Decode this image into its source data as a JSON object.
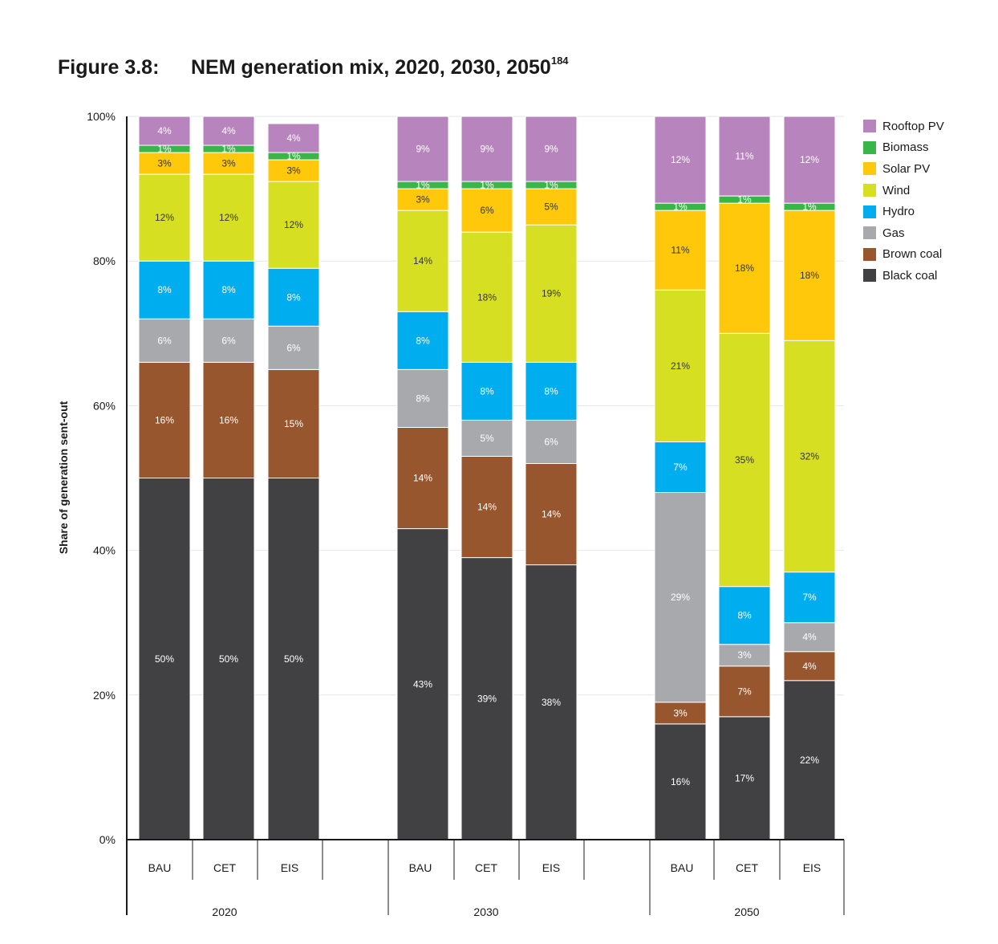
{
  "figure": {
    "label": "Figure 3.8:",
    "title": "NEM generation mix, 2020, 2030, 2050",
    "footnote": "184"
  },
  "chart_data": {
    "type": "stacked-bar",
    "ylabel": "Share of generation sent-out",
    "yticks": [
      "0%",
      "20%",
      "40%",
      "60%",
      "80%",
      "100%"
    ],
    "ylim": [
      0,
      100
    ],
    "groups": [
      {
        "year": "2020",
        "scenarios": [
          "BAU",
          "CET",
          "EIS"
        ]
      },
      {
        "year": "2030",
        "scenarios": [
          "BAU",
          "CET",
          "EIS"
        ]
      },
      {
        "year": "2050",
        "scenarios": [
          "BAU",
          "CET",
          "EIS"
        ]
      }
    ],
    "categories": [
      "2020 BAU",
      "2020 CET",
      "2020 EIS",
      "2030 BAU",
      "2030 CET",
      "2030 EIS",
      "2050 BAU",
      "2050 CET",
      "2050 EIS"
    ],
    "series": [
      {
        "name": "Black coal",
        "color": "#414042",
        "values": [
          50,
          50,
          50,
          43,
          39,
          38,
          16,
          17,
          22
        ],
        "labels": [
          "50%",
          "50%",
          "50%",
          "43%",
          "39%",
          "38%",
          "16%",
          "17%",
          "22%"
        ]
      },
      {
        "name": "Brown coal",
        "color": "#97562e",
        "values": [
          16,
          16,
          15,
          14,
          14,
          14,
          3,
          7,
          4
        ],
        "labels": [
          "16%",
          "16%",
          "15%",
          "14%",
          "14%",
          "14%",
          "3%",
          "7%",
          "4%"
        ]
      },
      {
        "name": "Gas",
        "color": "#a7a9ac",
        "values": [
          6,
          6,
          6,
          8,
          5,
          6,
          29,
          3,
          4
        ],
        "labels": [
          "6%",
          "6%",
          "6%",
          "8%",
          "5%",
          "6%",
          "29%",
          "3%",
          "4%"
        ]
      },
      {
        "name": "Hydro",
        "color": "#00aeef",
        "values": [
          8,
          8,
          8,
          8,
          8,
          8,
          7,
          8,
          7
        ],
        "labels": [
          "8%",
          "8%",
          "8%",
          "8%",
          "8%",
          "8%",
          "7%",
          "8%",
          "7%"
        ]
      },
      {
        "name": "Wind",
        "color": "#d7df23",
        "values": [
          12,
          12,
          12,
          14,
          18,
          19,
          21,
          35,
          32
        ],
        "labels": [
          "12%",
          "12%",
          "12%",
          "14%",
          "18%",
          "19%",
          "21%",
          "35%",
          "32%"
        ]
      },
      {
        "name": "Solar PV",
        "color": "#ffc80a",
        "values": [
          3,
          3,
          3,
          3,
          6,
          5,
          11,
          18,
          18
        ],
        "labels": [
          "3%",
          "3%",
          "3%",
          "3%",
          "6%",
          "5%",
          "11%",
          "18%",
          "18%"
        ]
      },
      {
        "name": "Biomass",
        "color": "#39b54a",
        "values": [
          1,
          1,
          1,
          1,
          1,
          1,
          1,
          1,
          1
        ],
        "labels": [
          "1%",
          "1%",
          "1%",
          "1%",
          "1%",
          "1%",
          "1%",
          "1%",
          "1%"
        ]
      },
      {
        "name": "Rooftop PV",
        "color": "#b884bd",
        "values": [
          4,
          4,
          4,
          9,
          9,
          9,
          12,
          11,
          12
        ],
        "labels": [
          "4%",
          "4%",
          "4%",
          "9%",
          "9%",
          "9%",
          "12%",
          "11%",
          "12%"
        ]
      }
    ],
    "legend": [
      "Rooftop PV",
      "Biomass",
      "Solar PV",
      "Wind",
      "Hydro",
      "Gas",
      "Brown coal",
      "Black coal"
    ],
    "legend_placement": "top-right"
  }
}
